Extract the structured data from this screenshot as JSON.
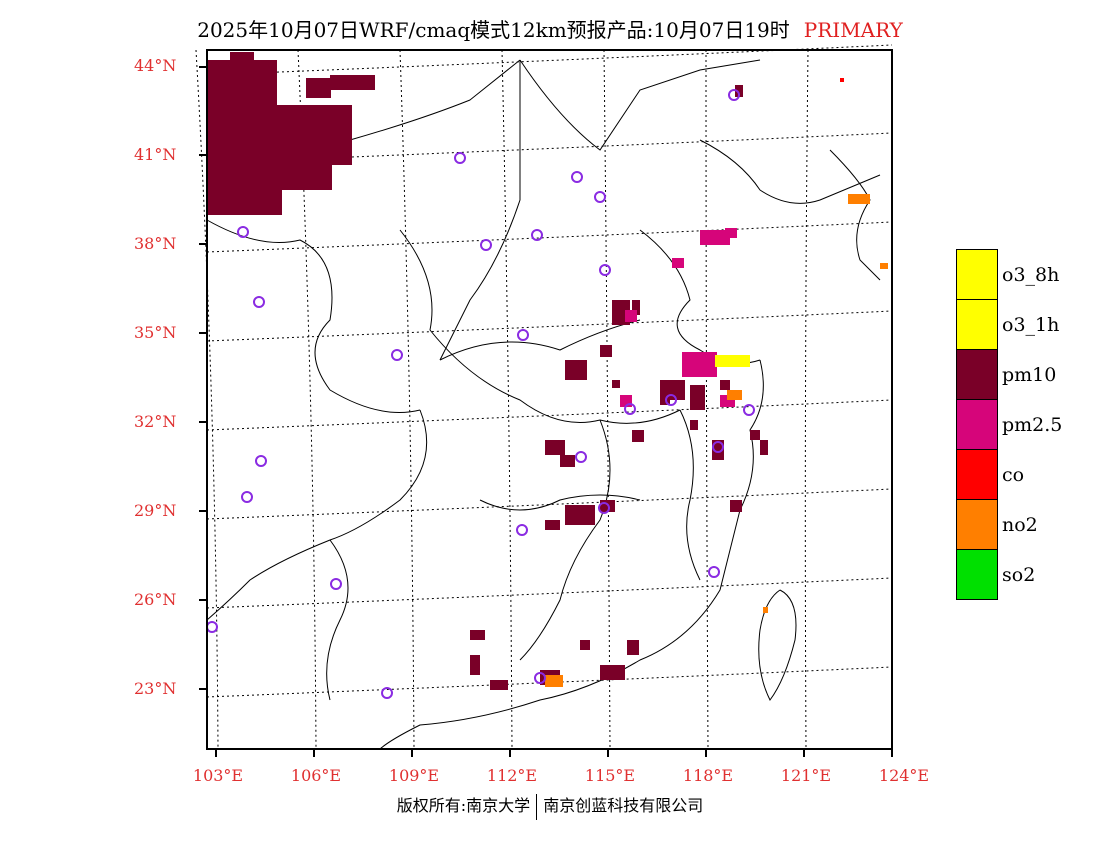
{
  "title": {
    "main": "2025年10月07日WRF/cmaq模式12km预报产品:10月07日19时",
    "tag": "PRIMARY"
  },
  "map": {
    "lat_labels": [
      "44°N",
      "41°N",
      "38°N",
      "35°N",
      "32°N",
      "29°N",
      "26°N",
      "23°N"
    ],
    "lon_labels": [
      "103°E",
      "106°E",
      "109°E",
      "112°E",
      "115°E",
      "118°E",
      "121°E",
      "124°E"
    ]
  },
  "legend": [
    {
      "label": "o3_8h",
      "color": "#ffff00"
    },
    {
      "label": "o3_1h",
      "color": "#ffff00"
    },
    {
      "label": "pm10",
      "color": "#7a0028"
    },
    {
      "label": "pm2.5",
      "color": "#d6057a"
    },
    {
      "label": "co",
      "color": "#ff0000"
    },
    {
      "label": "no2",
      "color": "#ff7f00"
    },
    {
      "label": "so2",
      "color": "#00e000"
    }
  ],
  "footer": {
    "left": "版权所有:南京大学",
    "right": "南京创蓝科技有限公司"
  }
}
